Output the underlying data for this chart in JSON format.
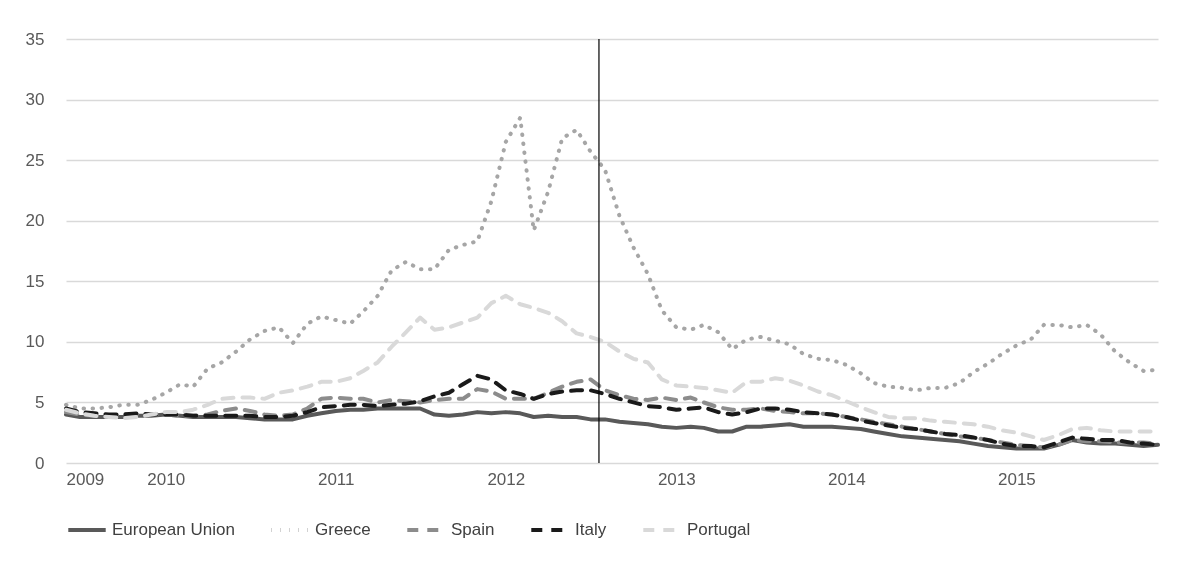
{
  "chart_data": {
    "type": "line",
    "x": [
      "2009-06",
      "2009-07",
      "2009-08",
      "2009-09",
      "2009-10",
      "2009-11",
      "2009-12",
      "2010-01",
      "2010-02",
      "2010-03",
      "2010-04",
      "2010-05",
      "2010-06",
      "2010-07",
      "2010-08",
      "2010-09",
      "2010-10",
      "2010-11",
      "2010-12",
      "2011-01",
      "2011-02",
      "2011-03",
      "2011-04",
      "2011-05",
      "2011-06",
      "2011-07",
      "2011-08",
      "2011-09",
      "2011-10",
      "2011-11",
      "2011-12",
      "2012-01",
      "2012-02",
      "2012-03",
      "2012-04",
      "2012-05",
      "2012-06",
      "2012-07",
      "2012-08",
      "2012-09",
      "2012-10",
      "2012-11",
      "2012-12",
      "2013-01",
      "2013-02",
      "2013-03",
      "2013-04",
      "2013-05",
      "2013-06",
      "2013-07",
      "2013-08",
      "2013-09",
      "2013-10",
      "2013-11",
      "2013-12",
      "2014-01",
      "2014-02",
      "2014-03",
      "2014-04",
      "2014-05",
      "2014-06",
      "2014-07",
      "2014-08",
      "2014-09",
      "2014-10",
      "2014-11",
      "2014-12",
      "2015-01",
      "2015-02",
      "2015-03",
      "2015-04",
      "2015-05",
      "2015-06",
      "2015-07",
      "2015-08",
      "2015-09",
      "2015-10",
      "2015-11"
    ],
    "xlim": [
      "2009-06",
      "2015-11"
    ],
    "xticks": [
      {
        "value": "2009-06",
        "label": "2009"
      },
      {
        "value": "2010-01",
        "label": "2010"
      },
      {
        "value": "2011-01",
        "label": "2011"
      },
      {
        "value": "2012-01",
        "label": "2012"
      },
      {
        "value": "2013-01",
        "label": "2013"
      },
      {
        "value": "2014-01",
        "label": "2014"
      },
      {
        "value": "2015-01",
        "label": "2015"
      }
    ],
    "ylim": [
      0,
      35
    ],
    "yticks": [
      0,
      5,
      10,
      15,
      20,
      25,
      30,
      35
    ],
    "grid": "y",
    "legend": "bottom",
    "marker": "none",
    "ref_lines": [
      {
        "axis": "x",
        "value": "2012-07-19",
        "color": "#000000"
      }
    ],
    "series": [
      {
        "name": "European Union",
        "color": "#595959",
        "line_style": "solid",
        "values": [
          4.0,
          3.8,
          3.8,
          3.8,
          3.8,
          3.9,
          3.9,
          4.0,
          3.9,
          3.8,
          3.8,
          3.8,
          3.8,
          3.7,
          3.6,
          3.6,
          3.6,
          3.9,
          4.1,
          4.3,
          4.4,
          4.4,
          4.5,
          4.5,
          4.5,
          4.5,
          4.0,
          3.9,
          4.0,
          4.2,
          4.1,
          4.2,
          4.1,
          3.8,
          3.9,
          3.8,
          3.8,
          3.6,
          3.6,
          3.4,
          3.3,
          3.2,
          3.0,
          2.9,
          3.0,
          2.9,
          2.6,
          2.6,
          3.0,
          3.0,
          3.1,
          3.2,
          3.0,
          3.0,
          3.0,
          2.9,
          2.8,
          2.6,
          2.4,
          2.2,
          2.1,
          2.0,
          1.9,
          1.8,
          1.6,
          1.4,
          1.3,
          1.2,
          1.2,
          1.2,
          1.5,
          1.9,
          1.7,
          1.6,
          1.6,
          1.5,
          1.4,
          1.5
        ]
      },
      {
        "name": "Greece",
        "color": "#a6a6a6",
        "line_style": "dotted",
        "values": [
          4.8,
          4.5,
          4.5,
          4.6,
          4.8,
          4.8,
          5.2,
          5.8,
          6.5,
          6.3,
          7.8,
          8.3,
          9.2,
          10.2,
          10.9,
          11.2,
          9.9,
          11.5,
          12.1,
          11.8,
          11.5,
          12.5,
          13.8,
          15.9,
          16.6,
          16.0,
          16.0,
          17.6,
          18.0,
          18.3,
          21.6,
          26.5,
          28.5,
          19.2,
          22.4,
          26.8,
          27.5,
          25.7,
          24.2,
          20.4,
          17.8,
          15.6,
          12.6,
          11.2,
          11.0,
          11.4,
          10.8,
          9.4,
          10.2,
          10.4,
          10.1,
          9.8,
          9.0,
          8.6,
          8.5,
          8.1,
          7.4,
          6.6,
          6.3,
          6.2,
          6.0,
          6.2,
          6.2,
          6.6,
          7.5,
          8.2,
          9.0,
          9.7,
          10.2,
          11.4,
          11.4,
          11.2,
          11.4,
          10.6,
          9.2,
          8.3,
          7.6,
          7.7
        ]
      },
      {
        "name": "Spain",
        "color": "#8c8c8c",
        "line_style": "dashed",
        "values": [
          4.2,
          4.0,
          3.9,
          3.9,
          4.0,
          4.0,
          4.0,
          4.0,
          3.9,
          3.9,
          4.0,
          4.3,
          4.5,
          4.3,
          4.0,
          3.9,
          4.0,
          4.5,
          5.3,
          5.4,
          5.3,
          5.3,
          5.0,
          5.2,
          5.1,
          5.0,
          5.2,
          5.3,
          5.3,
          6.1,
          5.9,
          5.3,
          5.3,
          5.3,
          5.8,
          6.3,
          6.7,
          6.9,
          6.0,
          5.6,
          5.3,
          5.2,
          5.4,
          5.2,
          5.4,
          5.0,
          4.6,
          4.4,
          4.4,
          4.5,
          4.3,
          4.2,
          4.1,
          4.1,
          4.0,
          3.8,
          3.6,
          3.4,
          3.2,
          3.0,
          2.8,
          2.6,
          2.4,
          2.2,
          2.1,
          1.9,
          1.7,
          1.5,
          1.4,
          1.3,
          1.5,
          1.9,
          1.8,
          1.8,
          1.7,
          1.7,
          1.7,
          1.6
        ]
      },
      {
        "name": "Italy",
        "color": "#1a1a1a",
        "line_style": "dashed",
        "values": [
          4.5,
          4.2,
          4.1,
          4.0,
          4.0,
          4.1,
          4.0,
          4.0,
          4.0,
          3.9,
          3.9,
          3.9,
          3.9,
          3.9,
          3.8,
          3.8,
          3.9,
          4.2,
          4.6,
          4.7,
          4.8,
          4.8,
          4.7,
          4.8,
          4.9,
          5.1,
          5.5,
          5.8,
          6.5,
          7.2,
          6.9,
          6.0,
          5.7,
          5.3,
          5.7,
          5.9,
          6.0,
          6.0,
          5.7,
          5.3,
          5.0,
          4.7,
          4.6,
          4.4,
          4.5,
          4.6,
          4.2,
          4.0,
          4.2,
          4.5,
          4.5,
          4.4,
          4.2,
          4.1,
          4.0,
          3.8,
          3.5,
          3.3,
          3.1,
          2.9,
          2.8,
          2.6,
          2.4,
          2.3,
          2.1,
          1.9,
          1.6,
          1.4,
          1.4,
          1.3,
          1.7,
          2.1,
          2.0,
          1.9,
          1.9,
          1.7,
          1.6,
          1.5
        ]
      },
      {
        "name": "Portugal",
        "color": "#d9d9d9",
        "line_style": "dashed",
        "values": [
          4.4,
          4.1,
          3.9,
          3.8,
          3.7,
          3.8,
          4.0,
          4.2,
          4.2,
          4.4,
          4.8,
          5.3,
          5.4,
          5.4,
          5.3,
          5.8,
          6.0,
          6.3,
          6.7,
          6.7,
          7.0,
          7.6,
          8.3,
          9.6,
          10.8,
          12.0,
          11.0,
          11.2,
          11.6,
          12.0,
          13.2,
          13.8,
          13.1,
          12.8,
          12.4,
          11.7,
          10.7,
          10.4,
          10.0,
          9.2,
          8.6,
          8.3,
          6.9,
          6.4,
          6.3,
          6.2,
          6.0,
          5.8,
          6.7,
          6.7,
          7.0,
          6.8,
          6.4,
          5.9,
          5.6,
          5.1,
          4.6,
          4.2,
          3.8,
          3.7,
          3.7,
          3.5,
          3.4,
          3.3,
          3.2,
          3.0,
          2.7,
          2.5,
          2.2,
          1.9,
          2.3,
          2.8,
          2.9,
          2.7,
          2.6,
          2.6,
          2.6,
          2.6
        ]
      }
    ]
  }
}
